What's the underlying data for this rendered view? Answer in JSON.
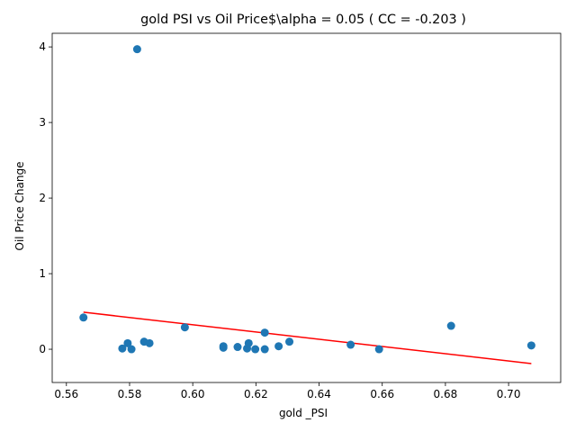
{
  "chart_data": {
    "type": "scatter",
    "title": "gold  PSI vs Oil Price$\\alpha = 0.05 ( CC = -0.203 )",
    "xlabel": "gold _PSI",
    "ylabel": "Oil Price Change",
    "xlim": [
      0.5555,
      0.7165
    ],
    "ylim": [
      -0.44,
      4.18
    ],
    "xticks": [
      0.56,
      0.58,
      0.6,
      0.62,
      0.64,
      0.66,
      0.68,
      0.7
    ],
    "xtick_labels": [
      "0.56",
      "0.58",
      "0.60",
      "0.62",
      "0.64",
      "0.66",
      "0.68",
      "0.70"
    ],
    "yticks": [
      0,
      1,
      2,
      3,
      4
    ],
    "ytick_labels": [
      "0",
      "1",
      "2",
      "3",
      "4"
    ],
    "grid": false,
    "series": [
      {
        "color": "#1f77b4",
        "points": [
          {
            "x": 0.5654,
            "y": 0.42
          },
          {
            "x": 0.5777,
            "y": 0.01
          },
          {
            "x": 0.5794,
            "y": 0.08
          },
          {
            "x": 0.5806,
            "y": 0.0
          },
          {
            "x": 0.5824,
            "y": 3.97
          },
          {
            "x": 0.5846,
            "y": 0.1
          },
          {
            "x": 0.5863,
            "y": 0.08
          },
          {
            "x": 0.5975,
            "y": 0.29
          },
          {
            "x": 0.6097,
            "y": 0.02
          },
          {
            "x": 0.6097,
            "y": 0.04
          },
          {
            "x": 0.6142,
            "y": 0.03
          },
          {
            "x": 0.6172,
            "y": 0.01
          },
          {
            "x": 0.6177,
            "y": 0.08
          },
          {
            "x": 0.6198,
            "y": 0.0
          },
          {
            "x": 0.6228,
            "y": 0.22
          },
          {
            "x": 0.6228,
            "y": 0.0
          },
          {
            "x": 0.6272,
            "y": 0.04
          },
          {
            "x": 0.6306,
            "y": 0.1
          },
          {
            "x": 0.65,
            "y": 0.06
          },
          {
            "x": 0.659,
            "y": 0.0
          },
          {
            "x": 0.6818,
            "y": 0.31
          },
          {
            "x": 0.7072,
            "y": 0.05
          }
        ]
      }
    ],
    "fit_line": {
      "color": "#ff0000",
      "x": [
        0.5654,
        0.7072
      ],
      "y": [
        0.49,
        -0.19
      ]
    }
  }
}
